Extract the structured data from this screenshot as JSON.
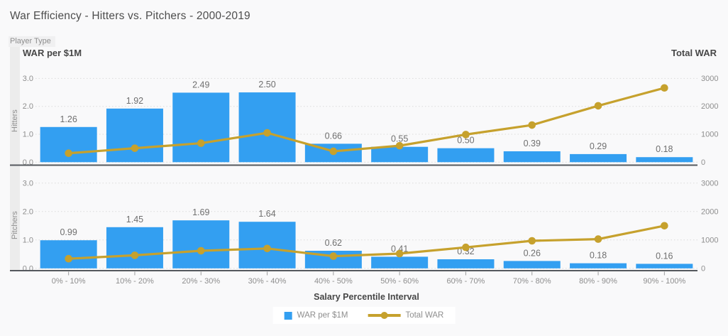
{
  "title": "War Efficiency - Hitters vs. Pitchers - 2000-2019",
  "row_field_label": "Player Type",
  "colors": {
    "bar": "#339FF1",
    "line": "#C6A12D",
    "axis_line": "#55595e",
    "gridline": "#dbdbdb",
    "tick_text": "#8e8e8e",
    "value_label_text": "#6f6f6f",
    "background": "#f9f9fa",
    "legend_background": "#ffffff"
  },
  "chart_data": {
    "type": "bar+line (dual axis, two row panels)",
    "title": "War Efficiency - Hitters vs. Pitchers - 2000-2019",
    "categories": [
      "0% - 10%",
      "10% - 20%",
      "20% - 30%",
      "30% - 40%",
      "40% - 50%",
      "50% - 60%",
      "60% - 70%",
      "70% - 80%",
      "80% - 90%",
      "90% - 100%"
    ],
    "xlabel": "Salary Percentile Interval",
    "ylabel_left": "WAR per $1M",
    "ylabel_right": "Total WAR",
    "ylim_left": [
      0,
      3.0
    ],
    "ylim_right": [
      0,
      3000
    ],
    "yticks_left": [
      "0.0",
      "1.0",
      "2.0",
      "3.0"
    ],
    "yticks_right": [
      "0",
      "1000",
      "2000",
      "3000"
    ],
    "grid": "dotted horizontal",
    "legend_position": "bottom-center",
    "series": [
      {
        "name": "WAR per $1M",
        "type": "bar",
        "axis": "left"
      },
      {
        "name": "Total WAR",
        "type": "line",
        "axis": "right"
      }
    ],
    "panels": [
      {
        "row_label": "Hitters",
        "war_per_1m": [
          1.26,
          1.92,
          2.49,
          2.5,
          0.66,
          0.55,
          0.5,
          0.39,
          0.29,
          0.18
        ],
        "total_war": [
          320,
          500,
          680,
          1050,
          390,
          590,
          990,
          1330,
          2020,
          2660
        ]
      },
      {
        "row_label": "Pitchers",
        "war_per_1m": [
          0.99,
          1.45,
          1.69,
          1.64,
          0.62,
          0.41,
          0.32,
          0.26,
          0.18,
          0.16
        ],
        "total_war": [
          340,
          460,
          620,
          700,
          430,
          520,
          740,
          970,
          1030,
          1500
        ]
      }
    ]
  }
}
